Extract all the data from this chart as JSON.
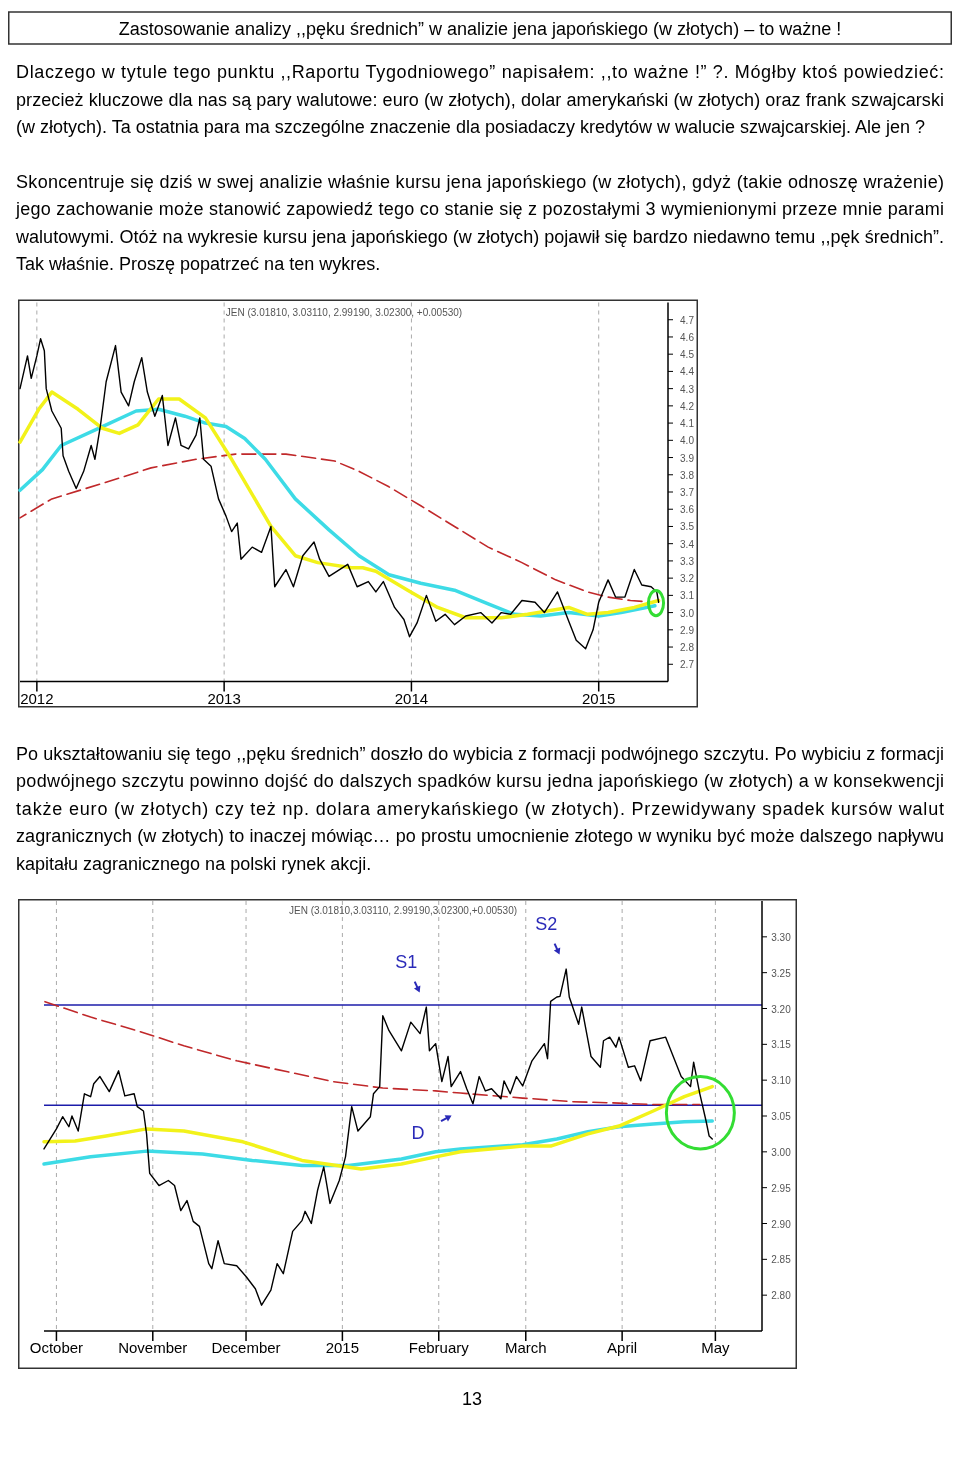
{
  "chart_data": [
    {
      "type": "line",
      "title": "Zastosowanie analizy ,,pęku średnich” w analizie jena japońskiego (w złotych) – to ważne !",
      "subtitle": "JEN (3.01810, 3.03110, 2.99190, 3.02300, +0.00530)",
      "annotations": [
        "Dlaczego w tytule tego punktu ,,Raportu Tygodniowego” napisałem: ,,to ważne !” ?. Mógłby ktoś powiedzieć: przecież kluczowe dla nas są pary walutowe: euro (w złotych), dolar amerykański (w złotych) oraz frank szwajcarski (w złotych). Ta ostatnia para ma szczególne znaczenie dla posiadaczy kredytów w walucie szwajcarskiej. Ale jen ?",
        "Skoncentruje się dziś w swej analizie właśnie kursu jena japońskiego (w złotych), gdyż (takie odnoszę wrażenie) jego zachowanie może stanowić zapowiedź tego co stanie się z pozostałymi 3 wymienionymi przeze mnie parami walutowymi. Otóż na wykresie kursu jena japońskiego (w złotych) pojawił się bardzo niedawno temu ,,pęk średnich”. Tak właśnie. Proszę popatrzeć na ten wykres."
      ],
      "xlim": [
        2011.91,
        2015.37
      ],
      "xticks": [
        2012,
        2013,
        2014,
        2015
      ],
      "ylim": [
        2.6,
        4.8
      ],
      "yticks": [
        {
          "value": 2.7,
          "label": "2.7"
        },
        {
          "value": 2.8,
          "label": "2.8"
        },
        {
          "value": 2.9,
          "label": "2.9"
        },
        {
          "value": 3.0,
          "label": "3.0"
        },
        {
          "value": 3.1,
          "label": "3.1"
        },
        {
          "value": 3.2,
          "label": "3.2"
        },
        {
          "value": 3.3,
          "label": "3.3"
        },
        {
          "value": 3.4,
          "label": "3.4"
        },
        {
          "value": 3.5,
          "label": "3.5"
        },
        {
          "value": 3.6,
          "label": "3.6"
        },
        {
          "value": 3.7,
          "label": "3.7"
        },
        {
          "value": 3.8,
          "label": "3.8"
        },
        {
          "value": 3.9,
          "label": "3.9"
        },
        {
          "value": 4.0,
          "label": "4.0"
        },
        {
          "value": 4.1,
          "label": "4.1"
        },
        {
          "value": 4.2,
          "label": "4.2"
        },
        {
          "value": 4.3,
          "label": "4.3"
        },
        {
          "value": 4.4,
          "label": "4.4"
        },
        {
          "value": 4.5,
          "label": "4.5"
        },
        {
          "value": 4.6,
          "label": "4.6"
        },
        {
          "value": 4.7,
          "label": "4.7"
        }
      ],
      "grid": "x",
      "series": [
        {
          "color": "#c0282a",
          "line_style": "dashed",
          "x": [
            2011.91,
            2012.08,
            2012.35,
            2012.61,
            2012.85,
            2013.06,
            2013.33,
            2013.59,
            2013.72,
            2013.88,
            2014.05,
            2014.23,
            2014.41,
            2014.59,
            2014.77,
            2014.94,
            2015.05,
            2015.17,
            2015.3
          ],
          "values": [
            3.55,
            3.66,
            3.75,
            3.84,
            3.89,
            3.92,
            3.92,
            3.88,
            3.82,
            3.73,
            3.62,
            3.5,
            3.38,
            3.29,
            3.19,
            3.12,
            3.09,
            3.07,
            3.06
          ]
        },
        {
          "color": "#3ddbe6",
          "x": [
            2011.91,
            2012.03,
            2012.13,
            2012.35,
            2012.53,
            2012.65,
            2012.79,
            2012.9,
            2013.01,
            2013.11,
            2013.22,
            2013.38,
            2013.56,
            2013.72,
            2013.88,
            2014.05,
            2014.23,
            2014.41,
            2014.55,
            2014.69,
            2014.84,
            2015.0,
            2015.12,
            2015.3
          ],
          "values": [
            3.71,
            3.83,
            3.97,
            4.08,
            4.17,
            4.18,
            4.14,
            4.1,
            4.08,
            4.01,
            3.89,
            3.66,
            3.48,
            3.33,
            3.22,
            3.17,
            3.13,
            3.05,
            2.99,
            2.98,
            3.0,
            2.98,
            3.0,
            3.04
          ]
        },
        {
          "color": "#f2f21a",
          "x": [
            2011.91,
            2012.01,
            2012.08,
            2012.22,
            2012.35,
            2012.44,
            2012.54,
            2012.65,
            2012.76,
            2012.9,
            2013.04,
            2013.25,
            2013.38,
            2013.5,
            2013.68,
            2013.74,
            2013.81,
            2013.98,
            2014.14,
            2014.29,
            2014.48,
            2014.62,
            2014.84,
            2014.94,
            2015.05,
            2015.19,
            2015.32
          ],
          "values": [
            3.99,
            4.18,
            4.28,
            4.18,
            4.07,
            4.04,
            4.09,
            4.24,
            4.24,
            4.13,
            3.89,
            3.5,
            3.33,
            3.29,
            3.26,
            3.26,
            3.24,
            3.13,
            3.03,
            2.97,
            2.97,
            2.99,
            3.03,
            2.99,
            3.0,
            3.03,
            3.07
          ]
        },
        {
          "color": "#000000",
          "x": [
            2011.91,
            2011.95,
            2011.97,
            2012.0,
            2012.02,
            2012.04,
            2012.05,
            2012.08,
            2012.13,
            2012.14,
            2012.17,
            2012.21,
            2012.25,
            2012.29,
            2012.31,
            2012.34,
            2012.37,
            2012.42,
            2012.45,
            2012.49,
            2012.52,
            2012.56,
            2012.59,
            2012.63,
            2012.67,
            2012.7,
            2012.74,
            2012.77,
            2012.81,
            2012.85,
            2012.87,
            2012.89,
            2012.93,
            2012.97,
            2013.01,
            2013.04,
            2013.07,
            2013.09,
            2013.15,
            2013.2,
            2013.25,
            2013.27,
            2013.33,
            2013.37,
            2013.42,
            2013.48,
            2013.51,
            2013.56,
            2013.66,
            2013.71,
            2013.77,
            2013.81,
            2013.85,
            2013.91,
            2013.96,
            2013.99,
            2014.03,
            2014.08,
            2014.13,
            2014.18,
            2014.23,
            2014.29,
            2014.37,
            2014.43,
            2014.48,
            2014.53,
            2014.59,
            2014.66,
            2014.71,
            2014.78,
            2014.84,
            2014.88,
            2014.93,
            2014.97,
            2015.0,
            2015.05,
            2015.09,
            2015.14,
            2015.19,
            2015.23,
            2015.28,
            2015.31,
            2015.32
          ],
          "values": [
            4.3,
            4.49,
            4.36,
            4.49,
            4.59,
            4.52,
            4.3,
            4.17,
            4.07,
            3.91,
            3.82,
            3.72,
            3.82,
            3.97,
            3.89,
            4.09,
            4.34,
            4.55,
            4.28,
            4.2,
            4.34,
            4.48,
            4.28,
            4.14,
            4.26,
            3.97,
            4.13,
            3.97,
            3.95,
            4.03,
            4.13,
            3.89,
            3.85,
            3.66,
            3.56,
            3.47,
            3.52,
            3.31,
            3.38,
            3.35,
            3.5,
            3.15,
            3.25,
            3.15,
            3.33,
            3.41,
            3.31,
            3.21,
            3.28,
            3.15,
            3.18,
            3.12,
            3.18,
            3.03,
            2.96,
            2.86,
            2.94,
            3.1,
            2.95,
            2.99,
            2.93,
            2.98,
            3.0,
            2.94,
            3.0,
            2.99,
            3.07,
            3.06,
            3.0,
            3.12,
            2.95,
            2.84,
            2.79,
            2.9,
            3.06,
            3.19,
            3.09,
            3.09,
            3.25,
            3.16,
            3.15,
            3.12,
            3.06
          ]
        }
      ]
    },
    {
      "type": "line",
      "subtitle": "JEN (3.01810,3.03110, 2.99190,3.02300,+0.00530)",
      "annotations": [
        "Po ukształtowaniu się tego ,,pęku średnich” doszło do wybicia z formacji podwójnego szczytu. Po wybiciu z formacji podwójnego szczytu powinno dojść do dalszych spadków kursu jedna japońskiego (w złotych) a w konsekwencji także euro (w złotych) czy też np. dolara amerykańskiego (w złotych). Przewidywany spadek kursów walut zagranicznych (w złotych) to inaczej mówiąc… po prostu umocnienie złotego w wyniku być może dalszego napływu kapitału zagranicznego na polski rynek akcji.",
        {
          "text": "S1",
          "x": "2015-01-28",
          "y": 3.202
        },
        {
          "text": "S2",
          "x": "2015-03-14",
          "y": 3.255
        },
        {
          "text": "D",
          "x": "2015-02-12",
          "y": 3.067
        },
        "13"
      ],
      "xlim": [
        "2014-09-27",
        "2015-05-16"
      ],
      "xticks": [
        {
          "value": "2014-10-01",
          "label": "October"
        },
        {
          "value": "2014-11-01",
          "label": "November"
        },
        {
          "value": "2014-12-01",
          "label": "December"
        },
        {
          "value": "2015-01-01",
          "label": "2015"
        },
        {
          "value": "2015-02-01",
          "label": "February"
        },
        {
          "value": "2015-03-01",
          "label": "March"
        },
        {
          "value": "2015-04-01",
          "label": "April"
        },
        {
          "value": "2015-05-01",
          "label": "May"
        }
      ],
      "ylim": [
        2.75,
        3.35
      ],
      "yticks": [
        {
          "value": 2.8,
          "label": "2.80"
        },
        {
          "value": 2.85,
          "label": "2.85"
        },
        {
          "value": 2.9,
          "label": "2.90"
        },
        {
          "value": 2.95,
          "label": "2.95"
        },
        {
          "value": 3.0,
          "label": "3.00"
        },
        {
          "value": 3.05,
          "label": "3.05"
        },
        {
          "value": 3.1,
          "label": "3.10"
        },
        {
          "value": 3.15,
          "label": "3.15"
        },
        {
          "value": 3.2,
          "label": "3.20"
        },
        {
          "value": 3.25,
          "label": "3.25"
        },
        {
          "value": 3.3,
          "label": "3.30"
        }
      ],
      "grid": "x",
      "ref_lines": [
        {
          "axis": "y",
          "value": 3.205,
          "color": "#1c1caa"
        },
        {
          "axis": "y",
          "value": 3.065,
          "color": "#1c1caa"
        }
      ],
      "series": [
        {
          "color": "#c0282a",
          "line_style": "dashed",
          "x": [
            "2014-09-27",
            "2014-10-12",
            "2014-10-27",
            "2014-11-11",
            "2014-11-28",
            "2014-12-14",
            "2014-12-29",
            "2015-01-14",
            "2015-01-31",
            "2015-02-08",
            "2015-02-28",
            "2015-03-16",
            "2015-03-31",
            "2015-04-11",
            "2015-04-26"
          ],
          "values": [
            3.21,
            3.188,
            3.169,
            3.148,
            3.127,
            3.112,
            3.098,
            3.089,
            3.085,
            3.082,
            3.075,
            3.07,
            3.068,
            3.066,
            3.066
          ]
        },
        {
          "color": "#3ddbe6",
          "x": [
            "2014-09-27",
            "2014-10-12",
            "2014-10-30",
            "2014-11-17",
            "2014-12-03",
            "2014-12-19",
            "2015-01-03",
            "2015-01-20",
            "2015-01-31",
            "2015-02-08",
            "2015-02-28",
            "2015-03-11",
            "2015-03-21",
            "2015-03-31",
            "2015-04-11",
            "2015-04-21",
            "2015-04-30"
          ],
          "values": [
            2.983,
            2.993,
            3.001,
            2.997,
            2.988,
            2.981,
            2.981,
            2.99,
            3.0,
            3.004,
            3.01,
            3.018,
            3.028,
            3.035,
            3.039,
            3.042,
            3.043
          ]
        },
        {
          "color": "#f2f21a",
          "x": [
            "2014-09-27",
            "2014-10-07",
            "2014-10-17",
            "2014-10-30",
            "2014-11-11",
            "2014-11-30",
            "2014-12-19",
            "2015-01-07",
            "2015-01-20",
            "2015-01-31",
            "2015-02-08",
            "2015-02-28",
            "2015-03-09",
            "2015-03-21",
            "2015-03-31",
            "2015-04-11",
            "2015-04-21",
            "2015-04-30"
          ],
          "values": [
            3.014,
            3.015,
            3.022,
            3.032,
            3.029,
            3.014,
            2.988,
            2.976,
            2.983,
            2.993,
            3.0,
            3.008,
            3.008,
            3.025,
            3.036,
            3.057,
            3.077,
            3.091
          ]
        },
        {
          "color": "#000000",
          "x": [
            "2014-09-27",
            "2014-10-01",
            "2014-10-03",
            "2014-10-05",
            "2014-10-06",
            "2014-10-08",
            "2014-10-10",
            "2014-10-12",
            "2014-10-13",
            "2014-10-15",
            "2014-10-18",
            "2014-10-21",
            "2014-10-23",
            "2014-10-26",
            "2014-10-27",
            "2014-10-29",
            "2014-10-30",
            "2014-10-31",
            "2014-11-03",
            "2014-11-06",
            "2014-11-08",
            "2014-11-10",
            "2014-11-12",
            "2014-11-14",
            "2014-11-16",
            "2014-11-19",
            "2014-11-20",
            "2014-11-22",
            "2014-11-24",
            "2014-11-28",
            "2014-12-01",
            "2014-12-04",
            "2014-12-06",
            "2014-12-09",
            "2014-12-11",
            "2014-12-13",
            "2014-12-16",
            "2014-12-19",
            "2014-12-20",
            "2014-12-22",
            "2014-12-24",
            "2014-12-26",
            "2014-12-28",
            "2014-12-31",
            "2015-01-02",
            "2015-01-04",
            "2015-01-06",
            "2015-01-10",
            "2015-01-11",
            "2015-01-13",
            "2015-01-14",
            "2015-01-16",
            "2015-01-20",
            "2015-01-23",
            "2015-01-26",
            "2015-01-28",
            "2015-01-29",
            "2015-01-31",
            "2015-02-02",
            "2015-02-04",
            "2015-02-05",
            "2015-02-08",
            "2015-02-10",
            "2015-02-12",
            "2015-02-14",
            "2015-02-16",
            "2015-02-18",
            "2015-02-21",
            "2015-02-22",
            "2015-02-24",
            "2015-02-26",
            "2015-02-28",
            "2015-03-03",
            "2015-03-07",
            "2015-03-08",
            "2015-03-09",
            "2015-03-11",
            "2015-03-12",
            "2015-03-14",
            "2015-03-15",
            "2015-03-18",
            "2015-03-19",
            "2015-03-22",
            "2015-03-25",
            "2015-03-26",
            "2015-03-28",
            "2015-03-30",
            "2015-03-31",
            "2015-04-03",
            "2015-04-05",
            "2015-04-07",
            "2015-04-10",
            "2015-04-15",
            "2015-04-20",
            "2015-04-23",
            "2015-04-24",
            "2015-04-26",
            "2015-04-28",
            "2015-04-29",
            "2015-04-30"
          ],
          "values": [
            3.004,
            3.032,
            3.049,
            3.035,
            3.05,
            3.029,
            3.081,
            3.077,
            3.095,
            3.105,
            3.084,
            3.113,
            3.078,
            3.081,
            3.063,
            3.057,
            3.025,
            2.97,
            2.953,
            2.96,
            2.953,
            2.918,
            2.932,
            2.903,
            2.896,
            2.844,
            2.837,
            2.876,
            2.844,
            2.841,
            2.826,
            2.809,
            2.786,
            2.807,
            2.844,
            2.83,
            2.889,
            2.904,
            2.917,
            2.9,
            2.946,
            2.979,
            2.928,
            2.96,
            2.993,
            3.063,
            3.029,
            3.049,
            3.081,
            3.091,
            3.19,
            3.169,
            3.141,
            3.181,
            3.165,
            3.202,
            3.141,
            3.151,
            3.098,
            3.133,
            3.091,
            3.112,
            3.088,
            3.067,
            3.105,
            3.085,
            3.088,
            3.074,
            3.099,
            3.081,
            3.105,
            3.092,
            3.127,
            3.151,
            3.13,
            3.21,
            3.216,
            3.217,
            3.255,
            3.216,
            3.178,
            3.202,
            3.133,
            3.118,
            3.155,
            3.16,
            3.146,
            3.16,
            3.118,
            3.12,
            3.099,
            3.155,
            3.16,
            3.105,
            3.091,
            3.125,
            3.081,
            3.043,
            3.022,
            3.018
          ]
        }
      ]
    }
  ]
}
